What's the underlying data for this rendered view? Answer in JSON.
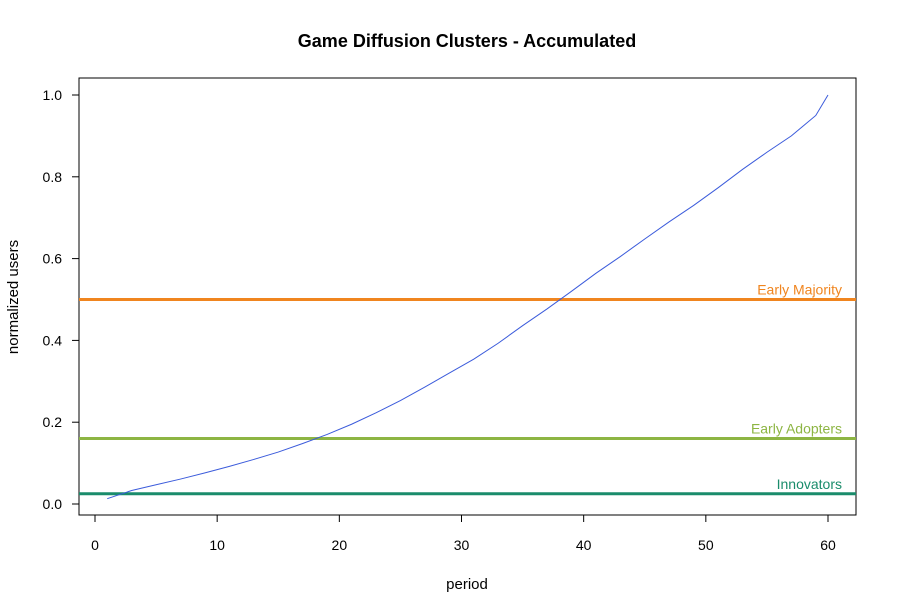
{
  "chart_data": {
    "type": "line",
    "title": "Game Diffusion Clusters - Accumulated",
    "xlabel": "period",
    "ylabel": "normalized users",
    "xlim": [
      0,
      60
    ],
    "ylim": [
      0,
      1.0
    ],
    "x_ticks": [
      0,
      10,
      20,
      30,
      40,
      50,
      60
    ],
    "y_ticks": [
      "0.0",
      "0.2",
      "0.4",
      "0.6",
      "0.8",
      "1.0"
    ],
    "grid": false,
    "series": [
      {
        "color": "#3b5bdb",
        "x": [
          1,
          3,
          5,
          7,
          9,
          11,
          13,
          15,
          17,
          19,
          21,
          23,
          25,
          27,
          29,
          31,
          33,
          35,
          37,
          39,
          41,
          43,
          45,
          47,
          49,
          51,
          53,
          55,
          57,
          59,
          60
        ],
        "y": [
          0.013,
          0.033,
          0.047,
          0.061,
          0.076,
          0.092,
          0.109,
          0.127,
          0.148,
          0.17,
          0.195,
          0.223,
          0.253,
          0.286,
          0.32,
          0.354,
          0.393,
          0.436,
          0.477,
          0.52,
          0.564,
          0.605,
          0.648,
          0.69,
          0.73,
          0.773,
          0.818,
          0.86,
          0.9,
          0.95,
          1.0
        ]
      }
    ],
    "reference_lines": [
      {
        "label": "Early Majority",
        "y": 0.5,
        "color": "#f0851f"
      },
      {
        "label": "Early Adopters",
        "y": 0.16,
        "color": "#8db543"
      },
      {
        "label": "Innovators",
        "y": 0.025,
        "color": "#1a8c6b"
      }
    ]
  }
}
